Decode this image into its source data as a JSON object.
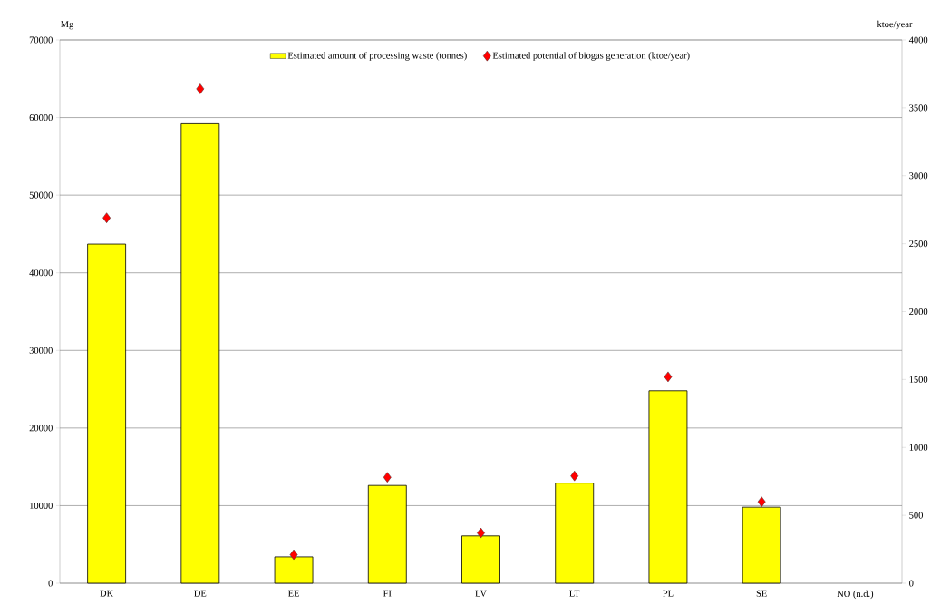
{
  "chart_data": {
    "type": "bar",
    "categories": [
      "DK",
      "DE",
      "EE",
      "FI",
      "LV",
      "LT",
      "PL",
      "SE",
      "NO (n.d.)"
    ],
    "ylabel": "Mg",
    "y2label": "ktoe/year",
    "ylim": [
      0,
      70000
    ],
    "yticks": [
      0,
      10000,
      20000,
      30000,
      40000,
      50000,
      60000,
      70000
    ],
    "y2lim": [
      0,
      4000
    ],
    "y2ticks": [
      0,
      500,
      1000,
      1500,
      2000,
      2500,
      3000,
      3500,
      4000
    ],
    "grid": "y",
    "legend": "top",
    "series": [
      {
        "name": "Estimated amount of processing waste (tonnes)",
        "color": "#ffff00",
        "values": [
          43700,
          59200,
          3400,
          12600,
          6100,
          12900,
          24800,
          9800,
          null
        ]
      },
      {
        "name": "Estimated potential of biogas generation (ktoe/year)",
        "type": "scatter",
        "axis": "y2",
        "marker": "diamond",
        "color": "#ff0000",
        "values": [
          2690,
          3640,
          210,
          780,
          370,
          790,
          1520,
          600,
          null
        ]
      }
    ]
  }
}
